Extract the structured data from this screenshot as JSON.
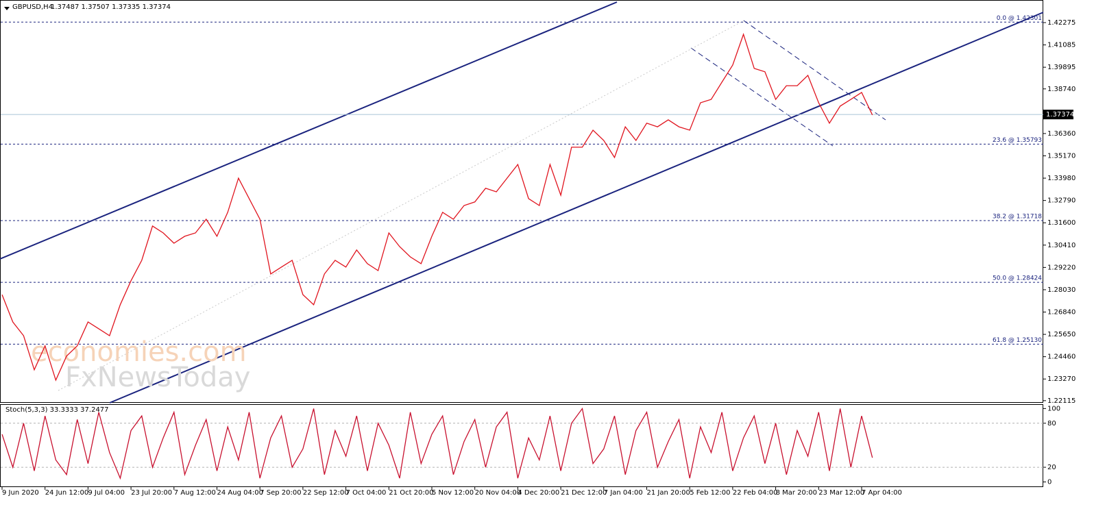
{
  "chart_data": [
    {
      "type": "line",
      "title": "GBPUSD,H4",
      "quote": "1.37487 1.37507 1.37335 1.37374",
      "categories": [
        "9 Jun 2020",
        null,
        null,
        null,
        "24 Jun 12:00",
        null,
        null,
        null,
        "9 Jul 04:00",
        null,
        null,
        null,
        "23 Jul 20:00",
        null,
        null,
        null,
        "7 Aug 12:00",
        null,
        null,
        null,
        "24 Aug 04:00",
        null,
        null,
        null,
        "7 Sep 20:00",
        null,
        null,
        null,
        "22 Sep 12:00",
        null,
        null,
        null,
        "7 Oct 04:00",
        null,
        null,
        null,
        "21 Oct 20:00",
        null,
        null,
        null,
        "5 Nov 12:00",
        null,
        null,
        null,
        "20 Nov 04:00",
        null,
        null,
        null,
        "4 Dec 20:00",
        null,
        null,
        null,
        "21 Dec 12:00",
        null,
        null,
        null,
        "7 Jan 04:00",
        null,
        null,
        null,
        "21 Jan 20:00",
        null,
        null,
        null,
        "5 Feb 12:00",
        null,
        null,
        null,
        "22 Feb 04:00",
        null,
        null,
        null,
        "8 Mar 20:00",
        null,
        null,
        null,
        "23 Mar 12:00",
        null,
        null,
        null,
        "7 Apr 04:00",
        null
      ],
      "series": [
        {
          "name": "GBPUSD",
          "color": "#e0141e",
          "values": [
            1.2777,
            1.2631,
            1.2558,
            1.2376,
            1.2504,
            1.2321,
            1.2449,
            1.2504,
            1.2631,
            1.2595,
            1.2558,
            1.2723,
            1.2851,
            1.296,
            1.3143,
            1.3106,
            1.3051,
            1.3088,
            1.3106,
            1.3179,
            1.3088,
            1.3216,
            1.3398,
            1.3289,
            1.3179,
            1.2887,
            1.2924,
            1.296,
            1.2777,
            1.2723,
            1.2887,
            1.296,
            1.2924,
            1.3015,
            1.2942,
            1.2905,
            1.3106,
            1.3033,
            1.2978,
            1.2942,
            1.3088,
            1.3216,
            1.3179,
            1.3252,
            1.3271,
            1.3344,
            1.3325,
            1.3398,
            1.3471,
            1.3289,
            1.3252,
            1.3471,
            1.3307,
            1.3563,
            1.3563,
            1.3654,
            1.3599,
            1.3508,
            1.3672,
            1.3599,
            1.3691,
            1.3672,
            1.3709,
            1.3672,
            1.3654,
            1.38,
            1.3818,
            1.391,
            1.4001,
            1.4165,
            1.3983,
            1.3965,
            1.3818,
            1.3891,
            1.3891,
            1.3946,
            1.38,
            1.3691,
            1.3782,
            1.3818,
            1.3855,
            1.3735
          ]
        }
      ],
      "ylim": [
        1.22,
        1.4348
      ],
      "yticks": [
        {
          "value": 1.22115,
          "label": "1.22115"
        },
        {
          "value": 1.2327,
          "label": "1.23270"
        },
        {
          "value": 1.2446,
          "label": "1.24460"
        },
        {
          "value": 1.2565,
          "label": "1.25650"
        },
        {
          "value": 1.2684,
          "label": "1.26840"
        },
        {
          "value": 1.2803,
          "label": "1.28030"
        },
        {
          "value": 1.2922,
          "label": "1.29220"
        },
        {
          "value": 1.3041,
          "label": "1.30410"
        },
        {
          "value": 1.316,
          "label": "1.31600"
        },
        {
          "value": 1.3279,
          "label": "1.32790"
        },
        {
          "value": 1.3398,
          "label": "1.33980"
        },
        {
          "value": 1.3517,
          "label": "1.35170"
        },
        {
          "value": 1.3636,
          "label": "1.36360"
        },
        {
          "value": 1.3874,
          "label": "1.38740"
        },
        {
          "value": 1.39895,
          "label": "1.39895"
        },
        {
          "value": 1.41085,
          "label": "1.41085"
        },
        {
          "value": 1.42275,
          "label": "1.42275"
        }
      ],
      "current_price": 1.37374,
      "fib_levels": [
        {
          "value": 1.42301,
          "label": "0.0 @ 1.42301"
        },
        {
          "value": 1.35793,
          "label": "23.6 @ 1.35793"
        },
        {
          "value": 1.31718,
          "label": "38.2 @ 1.31718"
        },
        {
          "value": 1.28424,
          "label": "50.0 @ 1.28424"
        },
        {
          "value": 1.2513,
          "label": "61.8 @ 1.25130"
        }
      ],
      "watermark": [
        "economies.com",
        "FxNewsToday"
      ]
    },
    {
      "type": "line",
      "title": "Stoch(5,3,3) 33.3333 37.2477",
      "series": [
        {
          "name": "Stoch",
          "color": "#c8102e",
          "values": [
            65,
            20,
            80,
            15,
            90,
            30,
            10,
            85,
            25,
            95,
            40,
            5,
            70,
            90,
            20,
            60,
            95,
            10,
            50,
            85,
            15,
            75,
            30,
            95,
            5,
            60,
            90,
            20,
            45,
            100,
            10,
            70,
            35,
            90,
            15,
            80,
            50,
            5,
            95,
            25,
            65,
            90,
            10,
            55,
            85,
            20,
            75,
            95,
            5,
            60,
            30,
            90,
            15,
            80,
            100,
            25,
            45,
            90,
            10,
            70,
            95,
            20,
            55,
            85,
            5,
            75,
            40,
            95,
            15,
            60,
            90,
            25,
            80,
            10,
            70,
            35,
            95,
            15,
            100,
            20,
            90,
            33
          ]
        }
      ],
      "ylim": [
        -7,
        105
      ],
      "yticks": [
        0,
        20,
        80,
        100
      ],
      "levels": [
        20,
        80
      ]
    }
  ]
}
